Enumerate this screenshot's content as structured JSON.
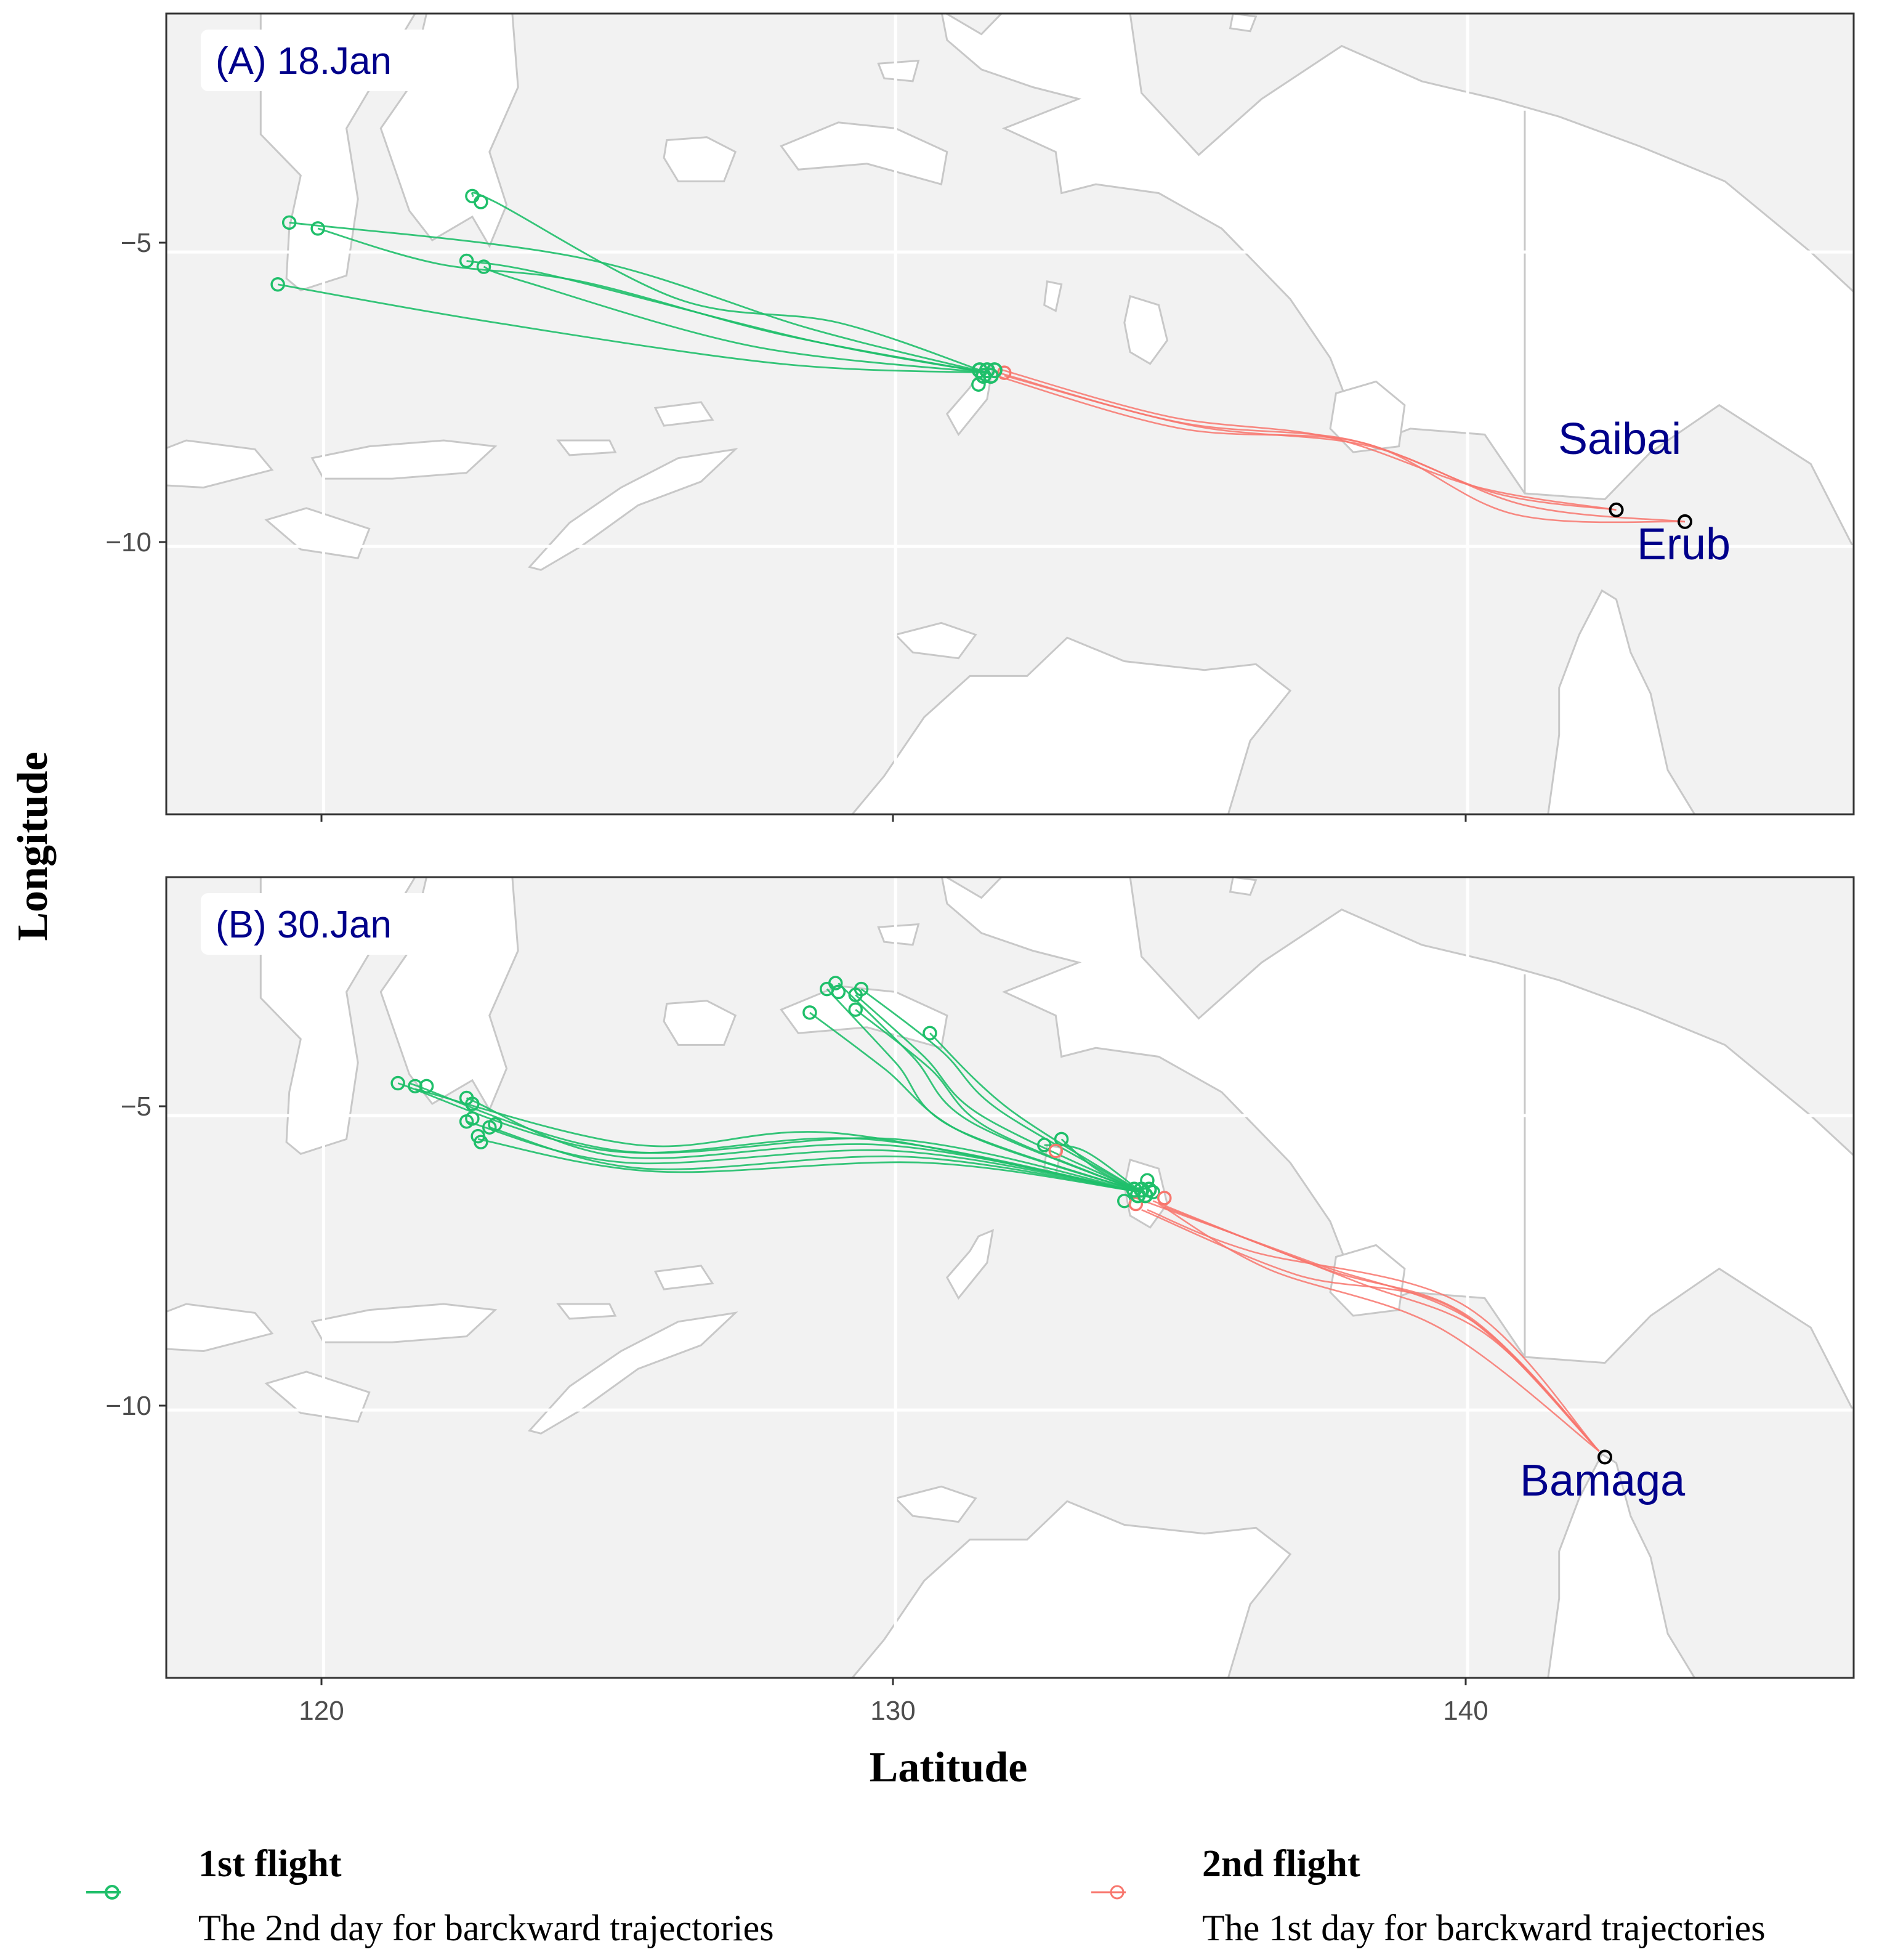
{
  "axes": {
    "x_title": "Latitude",
    "y_title": "Longitude",
    "x_ticks": [
      120,
      130,
      140
    ],
    "x_tick_labels": [
      "120",
      "130",
      "140"
    ],
    "y_ticks": [
      -5,
      -10
    ],
    "y_tick_labels": [
      "−5",
      "−10"
    ],
    "x_range": [
      117.25,
      146.75
    ],
    "y_range": [
      -14.55,
      -0.95
    ]
  },
  "colors": {
    "first_flight": "#1fbf6a",
    "second_flight": "#f8766d",
    "panel_background": "#f2f2f2",
    "land": "#ffffff",
    "coastline": "#c8c8c8",
    "label_text": "#00008b",
    "site_marker": "#000000"
  },
  "panels": [
    {
      "tag": "(A) 18.Jan",
      "sites": [
        {
          "name": "Saibai",
          "lon": 142.6,
          "lat": -9.38
        },
        {
          "name": "Erub",
          "lon": 143.8,
          "lat": -9.58
        }
      ],
      "second_flight": [
        [
          [
            142.6,
            -9.38
          ],
          [
            140.5,
            -9.1
          ],
          [
            138.0,
            -8.2
          ],
          [
            135.0,
            -7.9
          ],
          [
            131.8,
            -7.05
          ]
        ],
        [
          [
            143.8,
            -9.58
          ],
          [
            141.0,
            -9.3
          ],
          [
            138.3,
            -8.3
          ],
          [
            135.2,
            -7.95
          ],
          [
            131.9,
            -7.1
          ]
        ],
        [
          [
            142.6,
            -9.38
          ],
          [
            140.2,
            -9.0
          ],
          [
            137.6,
            -8.15
          ],
          [
            134.8,
            -7.8
          ],
          [
            131.85,
            -7.0
          ]
        ],
        [
          [
            143.8,
            -9.58
          ],
          [
            140.8,
            -9.45
          ],
          [
            138.2,
            -8.25
          ],
          [
            135.0,
            -8.0
          ],
          [
            131.75,
            -7.1
          ]
        ]
      ],
      "first_flight": [
        [
          [
            131.6,
            -7.05
          ],
          [
            129.0,
            -6.2
          ],
          [
            126.2,
            -5.8
          ],
          [
            123.0,
            -4.15
          ],
          [
            122.6,
            -4.05
          ]
        ],
        [
          [
            131.6,
            -7.05
          ],
          [
            128.0,
            -6.4
          ],
          [
            124.5,
            -5.5
          ],
          [
            122.0,
            -5.2
          ],
          [
            119.9,
            -4.6
          ]
        ],
        [
          [
            131.6,
            -7.05
          ],
          [
            127.5,
            -6.6
          ],
          [
            123.5,
            -5.5
          ],
          [
            122.8,
            -5.25
          ]
        ],
        [
          [
            131.6,
            -7.05
          ],
          [
            128.0,
            -6.9
          ],
          [
            123.0,
            -6.2
          ],
          [
            119.2,
            -5.55
          ]
        ],
        [
          [
            131.6,
            -7.05
          ],
          [
            128.5,
            -6.5
          ],
          [
            124.0,
            -5.4
          ],
          [
            122.5,
            -5.15
          ]
        ],
        [
          [
            131.6,
            -7.05
          ],
          [
            128.5,
            -6.3
          ],
          [
            124.5,
            -5.1
          ],
          [
            119.4,
            -4.5
          ]
        ]
      ],
      "first_flight_ends": [
        [
          122.6,
          -4.05
        ],
        [
          122.75,
          -4.15
        ],
        [
          119.9,
          -4.6
        ],
        [
          119.4,
          -4.5
        ],
        [
          122.5,
          -5.15
        ],
        [
          122.8,
          -5.25
        ],
        [
          119.2,
          -5.55
        ],
        [
          131.45,
          -7.25
        ]
      ],
      "second_flight_ends": [
        [
          131.9,
          -7.05
        ]
      ],
      "hub_ends": [
        [
          131.6,
          -7.05
        ]
      ]
    },
    {
      "tag": "(B) 30.Jan",
      "sites": [
        {
          "name": "Bamaga",
          "lon": 142.4,
          "lat": -10.8
        }
      ],
      "second_flight": [
        [
          [
            142.3,
            -10.7
          ],
          [
            140.3,
            -8.7
          ],
          [
            138.0,
            -7.8
          ],
          [
            134.7,
            -6.55
          ]
        ],
        [
          [
            142.3,
            -10.7
          ],
          [
            140.0,
            -8.4
          ],
          [
            137.5,
            -7.6
          ],
          [
            134.5,
            -6.45
          ]
        ],
        [
          [
            142.3,
            -10.7
          ],
          [
            139.8,
            -8.3
          ],
          [
            137.0,
            -7.7
          ],
          [
            134.3,
            -6.6
          ]
        ],
        [
          [
            142.3,
            -10.7
          ],
          [
            140.1,
            -8.5
          ],
          [
            137.3,
            -7.5
          ],
          [
            134.2,
            -6.4
          ]
        ],
        [
          [
            142.3,
            -10.7
          ],
          [
            139.5,
            -8.6
          ],
          [
            136.5,
            -7.6
          ],
          [
            134.6,
            -6.5
          ]
        ],
        [
          [
            142.3,
            -10.7
          ],
          [
            139.9,
            -8.2
          ],
          [
            136.2,
            -7.3
          ],
          [
            134.4,
            -6.6
          ]
        ]
      ],
      "first_flight": [
        [
          [
            134.3,
            -6.3
          ],
          [
            129.5,
            -5.4
          ],
          [
            125.0,
            -5.6
          ],
          [
            121.3,
            -4.45
          ]
        ],
        [
          [
            134.3,
            -6.3
          ],
          [
            129.0,
            -5.3
          ],
          [
            125.5,
            -5.5
          ],
          [
            121.6,
            -4.55
          ]
        ],
        [
          [
            134.3,
            -6.3
          ],
          [
            129.8,
            -5.5
          ],
          [
            125.2,
            -5.7
          ],
          [
            122.5,
            -4.7
          ]
        ],
        [
          [
            134.3,
            -6.3
          ],
          [
            130.0,
            -5.6
          ],
          [
            125.3,
            -5.8
          ],
          [
            122.5,
            -5.1
          ]
        ],
        [
          [
            134.3,
            -6.3
          ],
          [
            130.2,
            -5.7
          ],
          [
            125.6,
            -5.9
          ],
          [
            122.9,
            -5.2
          ]
        ],
        [
          [
            134.3,
            -6.3
          ],
          [
            130.5,
            -5.8
          ],
          [
            125.8,
            -5.95
          ],
          [
            122.7,
            -5.4
          ]
        ],
        [
          [
            134.3,
            -6.3
          ],
          [
            130.0,
            -5.4
          ],
          [
            125.2,
            -5.6
          ],
          [
            121.5,
            -4.45
          ]
        ],
        [
          [
            134.3,
            -6.3
          ],
          [
            131.0,
            -5.2
          ],
          [
            130.0,
            -4.1
          ],
          [
            128.8,
            -2.85
          ]
        ],
        [
          [
            134.3,
            -6.3
          ],
          [
            131.3,
            -5.1
          ],
          [
            130.3,
            -4.0
          ],
          [
            129.0,
            -2.75
          ]
        ],
        [
          [
            134.3,
            -6.3
          ],
          [
            131.5,
            -5.0
          ],
          [
            130.5,
            -4.0
          ],
          [
            129.3,
            -2.95
          ]
        ],
        [
          [
            134.3,
            -6.3
          ],
          [
            131.2,
            -5.3
          ],
          [
            129.8,
            -4.2
          ],
          [
            128.5,
            -3.25
          ]
        ],
        [
          [
            134.3,
            -6.3
          ],
          [
            131.8,
            -4.9
          ],
          [
            130.8,
            -3.9
          ],
          [
            129.4,
            -2.85
          ]
        ],
        [
          [
            134.3,
            -6.3
          ],
          [
            131.6,
            -5.2
          ],
          [
            130.6,
            -4.2
          ],
          [
            129.3,
            -3.2
          ]
        ],
        [
          [
            134.3,
            -6.3
          ],
          [
            132.0,
            -4.9
          ],
          [
            130.6,
            -3.6
          ]
        ],
        [
          [
            134.3,
            -6.3
          ],
          [
            133.5,
            -5.9
          ],
          [
            132.9,
            -5.4
          ]
        ],
        [
          [
            134.3,
            -6.3
          ],
          [
            133.3,
            -5.6
          ],
          [
            132.6,
            -5.5
          ]
        ]
      ],
      "first_flight_ends": [
        [
          121.3,
          -4.45
        ],
        [
          121.6,
          -4.5
        ],
        [
          121.8,
          -4.5
        ],
        [
          122.5,
          -4.7
        ],
        [
          122.6,
          -4.8
        ],
        [
          122.5,
          -5.1
        ],
        [
          122.6,
          -5.05
        ],
        [
          122.7,
          -5.35
        ],
        [
          122.75,
          -5.45
        ],
        [
          122.9,
          -5.2
        ],
        [
          123.0,
          -5.15
        ],
        [
          128.8,
          -2.85
        ],
        [
          128.95,
          -2.75
        ],
        [
          129.0,
          -2.9
        ],
        [
          129.3,
          -2.95
        ],
        [
          129.4,
          -2.85
        ],
        [
          129.3,
          -3.2
        ],
        [
          128.5,
          -3.25
        ],
        [
          130.6,
          -3.6
        ],
        [
          132.9,
          -5.4
        ],
        [
          132.6,
          -5.5
        ],
        [
          134.0,
          -6.45
        ],
        [
          134.4,
          -6.1
        ],
        [
          134.5,
          -6.3
        ]
      ],
      "second_flight_ends": [
        [
          132.8,
          -5.6
        ],
        [
          134.2,
          -6.5
        ],
        [
          134.7,
          -6.4
        ]
      ],
      "hub_ends": [
        [
          134.3,
          -6.3
        ]
      ]
    }
  ],
  "legend": [
    {
      "title": "1st flight",
      "text": "The 2nd day for barckward trajectories",
      "color_key": "first_flight"
    },
    {
      "title": "2nd flight",
      "text": "The 1st day for barckward trajectories",
      "color_key": "second_flight"
    }
  ]
}
